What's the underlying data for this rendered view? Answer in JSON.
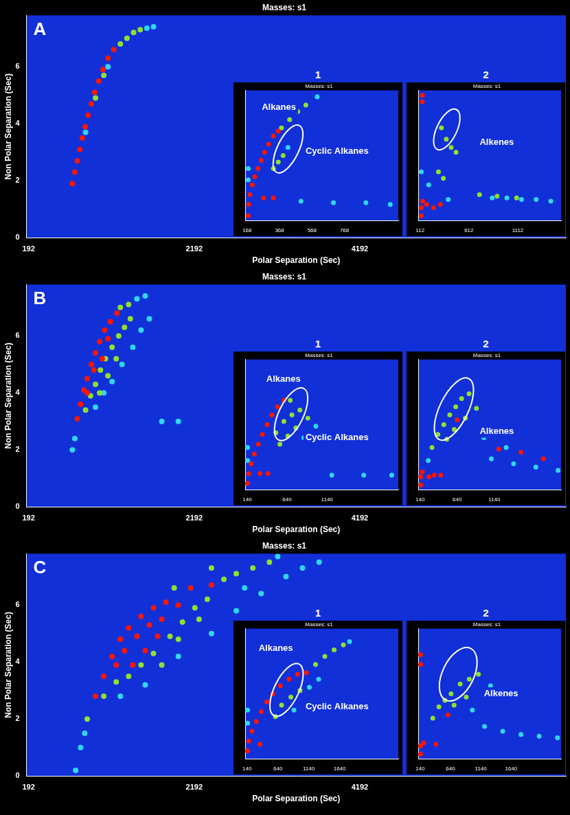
{
  "chart_data": [
    {
      "type": "scatter",
      "label": "A",
      "title": "Masses: s1",
      "x_label": "Polar Separation (Sec)",
      "y_label": "Non Polar Separation (Sec)",
      "xlim": [
        166,
        6680
      ],
      "xticks": [
        192,
        2192,
        4192
      ],
      "ylim": [
        0,
        7.8
      ],
      "yticks": [
        0,
        2,
        4,
        6
      ],
      "grid": false,
      "series": [
        {
          "color": "#ff1500",
          "x": [
            720,
            750,
            780,
            810,
            840,
            875,
            910,
            950,
            990,
            1040,
            1090,
            1150,
            1220
          ],
          "values": [
            1.9,
            2.3,
            2.7,
            3.1,
            3.5,
            3.9,
            4.3,
            4.7,
            5.1,
            5.5,
            5.9,
            6.3,
            6.6
          ]
        },
        {
          "color": "#8fe030",
          "x": [
            1000,
            1100,
            1300,
            1380,
            1460,
            1540
          ],
          "values": [
            4.9,
            5.7,
            6.8,
            7.0,
            7.2,
            7.3
          ]
        },
        {
          "color": "#2fd8f0",
          "x": [
            880,
            1150,
            1620,
            1700
          ],
          "values": [
            3.7,
            6.0,
            7.35,
            7.4
          ]
        }
      ],
      "insets": [
        {
          "type": "scatter",
          "label": "1",
          "title": "Masses: s1",
          "xlim": [
            156,
            1100
          ],
          "xticks": [
            168,
            368,
            568,
            768
          ],
          "ylim": [
            0,
            8
          ],
          "tick_labels": "x",
          "annotations": [
            "Alkanes",
            "Cyclic Alkanes"
          ],
          "series": [
            {
              "color": "#ff1500",
              "x": [
                175,
                178,
                185,
                200,
                215,
                235,
                255,
                275,
                300,
                330,
                360,
                270,
                330
              ],
              "values": [
                0.3,
                1.0,
                1.6,
                2.2,
                2.7,
                3.2,
                3.7,
                4.2,
                4.7,
                5.2,
                5.5,
                1.4,
                1.4
              ]
            },
            {
              "color": "#8fe030",
              "x": [
                380,
                430,
                480,
                530,
                330,
                360,
                390
              ],
              "values": [
                5.7,
                6.2,
                6.7,
                7.1,
                3.2,
                3.6,
                4.0
              ]
            },
            {
              "color": "#2fd8f0",
              "x": [
                175,
                175,
                600,
                500,
                700,
                900,
                1050,
                420
              ],
              "values": [
                2.5,
                3.2,
                7.6,
                1.2,
                1.1,
                1.1,
                1.0,
                4.5
              ]
            }
          ]
        },
        {
          "type": "scatter",
          "label": "2",
          "title": "Masses: s1",
          "xlim": [
            93,
            1555
          ],
          "xticks": [
            112,
            612,
            1112
          ],
          "ylim": [
            0,
            8
          ],
          "tick_labels": "x",
          "annotations": [
            "Alkenes"
          ],
          "series": [
            {
              "color": "#ff1500",
              "x": [
                125,
                125,
                140,
                180,
                135,
                135,
                250,
                320
              ],
              "values": [
                0.3,
                0.8,
                1.2,
                1.0,
                7.3,
                7.7,
                0.8,
                1.0
              ]
            },
            {
              "color": "#8fe030",
              "x": [
                330,
                380,
                430,
                480,
                300,
                350,
                720,
                900,
                1100
              ],
              "values": [
                5.7,
                5.0,
                4.5,
                4.2,
                3.0,
                2.6,
                1.6,
                1.5,
                1.4
              ]
            },
            {
              "color": "#2fd8f0",
              "x": [
                850,
                1000,
                1150,
                1300,
                1450,
                400,
                200,
                125
              ],
              "values": [
                1.4,
                1.4,
                1.3,
                1.3,
                1.2,
                1.3,
                2.2,
                3.0
              ]
            }
          ]
        }
      ]
    },
    {
      "type": "scatter",
      "label": "B",
      "title": "Masses: s1",
      "x_label": "Polar Separation (Sec)",
      "y_label": "Non Polar Separation (Sec)",
      "xlim": [
        166,
        6680
      ],
      "xticks": [
        192,
        2192,
        4192
      ],
      "ylim": [
        0,
        7.8
      ],
      "yticks": [
        0,
        2,
        4,
        6
      ],
      "grid": false,
      "series": [
        {
          "color": "#ff1500",
          "x": [
            780,
            820,
            860,
            900,
            950,
            1000,
            1050,
            1110,
            1180,
            1260,
            900,
            980,
            1080,
            1150
          ],
          "values": [
            3.1,
            3.6,
            4.1,
            4.5,
            5.0,
            5.4,
            5.8,
            6.2,
            6.5,
            6.8,
            4.0,
            4.8,
            5.2,
            5.9
          ]
        },
        {
          "color": "#8fe030",
          "x": [
            880,
            940,
            1000,
            1060,
            1120,
            1200,
            1280,
            1350,
            1420,
            1300,
            1400,
            1150,
            1250,
            1050
          ],
          "values": [
            3.4,
            3.9,
            4.3,
            4.8,
            5.2,
            5.6,
            6.0,
            6.3,
            6.6,
            7.0,
            7.1,
            4.6,
            5.2,
            4.0
          ]
        },
        {
          "color": "#2fd8f0",
          "x": [
            720,
            750,
            1000,
            1100,
            1200,
            1320,
            1450,
            1500,
            1600,
            1550,
            1650,
            1800,
            2000
          ],
          "values": [
            2.0,
            2.4,
            3.5,
            4.0,
            4.4,
            5.0,
            5.6,
            7.3,
            7.4,
            6.2,
            6.6,
            3.0,
            3.0
          ]
        }
      ],
      "insets": [
        {
          "type": "scatter",
          "label": "1",
          "title": "Masses: s1",
          "xlim": [
            115,
            2033
          ],
          "xticks": [
            140,
            640,
            1140
          ],
          "ylim": [
            0,
            8
          ],
          "tick_labels": "x",
          "annotations": [
            "Alkanes",
            "Cyclic Alkanes"
          ],
          "series": [
            {
              "color": "#ff1500",
              "x": [
                145,
                160,
                190,
                230,
                280,
                330,
                390,
                450,
                520,
                600,
                300,
                400
              ],
              "values": [
                0.4,
                1.0,
                1.6,
                2.2,
                2.8,
                3.4,
                4.0,
                4.6,
                5.1,
                5.5,
                1.0,
                1.0
              ]
            },
            {
              "color": "#8fe030",
              "x": [
                500,
                600,
                700,
                800,
                550,
                650,
                750,
                900,
                680
              ],
              "values": [
                3.5,
                4.2,
                4.6,
                4.9,
                2.8,
                3.3,
                3.8,
                4.4,
                5.5
              ]
            },
            {
              "color": "#2fd8f0",
              "x": [
                145,
                145,
                850,
                1000,
                1200,
                1600,
                1950
              ],
              "values": [
                1.8,
                2.6,
                3.2,
                3.9,
                0.9,
                0.9,
                0.9
              ]
            }
          ]
        },
        {
          "type": "scatter",
          "label": "2",
          "title": "Masses: s1",
          "xlim": [
            115,
            2040
          ],
          "xticks": [
            140,
            640,
            1140
          ],
          "ylim": [
            0,
            8
          ],
          "tick_labels": "x",
          "annotations": [
            "Alkenes"
          ],
          "series": [
            {
              "color": "#ff1500",
              "x": [
                150,
                150,
                170,
                260,
                330,
                420,
                640,
                1200,
                1500,
                1800
              ],
              "values": [
                0.3,
                0.8,
                1.1,
                0.8,
                0.9,
                0.9,
                4.3,
                2.5,
                2.3,
                1.9
              ]
            },
            {
              "color": "#8fe030",
              "x": [
                300,
                380,
                460,
                540,
                620,
                700,
                800,
                500,
                600,
                750,
                900
              ],
              "values": [
                2.6,
                3.4,
                4.0,
                4.6,
                5.1,
                5.6,
                5.9,
                3.1,
                3.7,
                4.4,
                5.0
              ]
            },
            {
              "color": "#2fd8f0",
              "x": [
                250,
                1000,
                1100,
                1400,
                1700,
                2000,
                1300
              ],
              "values": [
                1.8,
                3.2,
                1.9,
                1.6,
                1.4,
                1.2,
                2.6
              ]
            }
          ]
        }
      ]
    },
    {
      "type": "scatter",
      "label": "C",
      "title": "Masses: s1",
      "x_label": "Polar Separation (Sec)",
      "y_label": "Non Polar Separation (Sec)",
      "xlim": [
        166,
        6680
      ],
      "xticks": [
        192,
        2192,
        4192
      ],
      "ylim": [
        0,
        7.8
      ],
      "yticks": [
        0,
        2,
        4,
        6
      ],
      "grid": false,
      "series": [
        {
          "color": "#ff1500",
          "x": [
            1000,
            1100,
            1200,
            1300,
            1400,
            1550,
            1700,
            1850,
            2000,
            1250,
            1350,
            1500,
            1650,
            1800,
            1450,
            1600,
            1750,
            2150,
            2400
          ],
          "values": [
            2.8,
            3.5,
            4.2,
            4.8,
            5.2,
            5.6,
            5.9,
            6.1,
            6.0,
            3.9,
            4.4,
            4.9,
            5.3,
            5.5,
            3.9,
            4.4,
            4.9,
            6.6,
            6.7
          ]
        },
        {
          "color": "#8fe030",
          "x": [
            900,
            1100,
            1250,
            1400,
            1550,
            1700,
            1900,
            2050,
            2200,
            2350,
            2550,
            2700,
            2900,
            3100,
            2400,
            1950,
            2250,
            2000,
            1800
          ],
          "values": [
            2.0,
            2.8,
            3.3,
            3.5,
            3.9,
            4.3,
            4.9,
            5.4,
            5.9,
            6.2,
            6.9,
            7.1,
            7.3,
            7.5,
            7.3,
            6.6,
            5.5,
            4.8,
            3.9
          ]
        },
        {
          "color": "#2fd8f0",
          "x": [
            760,
            820,
            870,
            1300,
            1600,
            2000,
            2400,
            2700,
            3000,
            3300,
            3500,
            3700,
            2800,
            3200
          ],
          "values": [
            0.2,
            1.0,
            1.5,
            2.8,
            3.2,
            4.2,
            5.0,
            5.8,
            6.4,
            7.0,
            7.3,
            7.5,
            6.6,
            7.7
          ]
        }
      ],
      "insets": [
        {
          "type": "scatter",
          "label": "1",
          "title": "Masses: s1",
          "xlim": [
            110,
            2590
          ],
          "xticks": [
            140,
            640,
            1140,
            1640
          ],
          "ylim": [
            0,
            8
          ],
          "tick_labels": "x",
          "annotations": [
            "Alkanes",
            "Cyclic Alkanes"
          ],
          "series": [
            {
              "color": "#ff1500",
              "x": [
                150,
                170,
                220,
                290,
                370,
                460,
                560,
                680,
                820,
                960,
                1100,
                350
              ],
              "values": [
                0.5,
                1.1,
                1.7,
                2.3,
                2.9,
                3.5,
                4.0,
                4.5,
                4.9,
                5.2,
                5.3,
                0.9
              ]
            },
            {
              "color": "#8fe030",
              "x": [
                1250,
                1400,
                1550,
                1700,
                700,
                850,
                1000,
                600
              ],
              "values": [
                5.8,
                6.3,
                6.7,
                7.0,
                3.3,
                3.8,
                4.2,
                2.6
              ]
            },
            {
              "color": "#2fd8f0",
              "x": [
                150,
                150,
                1800,
                1150,
                1300,
                900
              ],
              "values": [
                2.2,
                3.0,
                7.2,
                4.4,
                4.9,
                3.0
              ]
            }
          ]
        },
        {
          "type": "scatter",
          "label": "2",
          "title": "Masses: s1",
          "xlim": [
            110,
            2460
          ],
          "xticks": [
            140,
            640,
            1140,
            1640
          ],
          "ylim": [
            0,
            8
          ],
          "tick_labels": "x",
          "annotations": [
            "Alkenes"
          ],
          "series": [
            {
              "color": "#ff1500",
              "x": [
                150,
                150,
                200,
                150,
                150,
                400,
                600
              ],
              "values": [
                0.3,
                0.8,
                1.0,
                5.8,
                6.4,
                0.9,
                2.7
              ]
            },
            {
              "color": "#8fe030",
              "x": [
                350,
                450,
                550,
                650,
                800,
                950,
                1100,
                700,
                900
              ],
              "values": [
                2.5,
                3.2,
                3.6,
                4.0,
                4.6,
                4.9,
                5.2,
                3.3,
                3.8
              ]
            },
            {
              "color": "#2fd8f0",
              "x": [
                1200,
                1500,
                1800,
                2100,
                2400,
                1300,
                1000
              ],
              "values": [
                2.0,
                1.7,
                1.5,
                1.4,
                1.3,
                4.5,
                3.0
              ]
            }
          ]
        }
      ]
    }
  ]
}
